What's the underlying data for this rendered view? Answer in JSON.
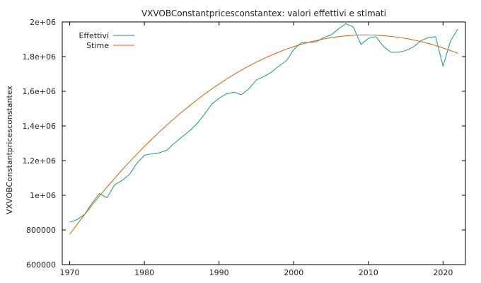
{
  "chart_data": {
    "type": "line",
    "title": "VXVOBConstantpricesconstantex: valori effettivi e stimati",
    "xlabel": "",
    "ylabel": "VXVOBConstantpricesconstantex",
    "xlim": [
      1969,
      2023
    ],
    "ylim": [
      600000,
      2000000
    ],
    "x_ticks": [
      1970,
      1980,
      1990,
      2000,
      2010,
      2020
    ],
    "y_ticks": [
      600000,
      800000,
      1000000,
      1200000,
      1400000,
      1600000,
      1800000,
      2000000
    ],
    "y_tick_labels": [
      "600000",
      "800000",
      "1e+06",
      "1,2e+06",
      "1,4e+06",
      "1,6e+06",
      "1,8e+06",
      "2e+06"
    ],
    "legend_position": "top-left",
    "grid": false,
    "series": [
      {
        "name": "Effettivi",
        "color": "#1a9978",
        "x": [
          1970,
          1971,
          1972,
          1973,
          1974,
          1975,
          1976,
          1977,
          1978,
          1979,
          1980,
          1981,
          1982,
          1983,
          1984,
          1985,
          1986,
          1987,
          1988,
          1989,
          1990,
          1991,
          1992,
          1993,
          1994,
          1995,
          1996,
          1997,
          1998,
          1999,
          2000,
          2001,
          2002,
          2003,
          2004,
          2005,
          2006,
          2007,
          2008,
          2009,
          2010,
          2011,
          2012,
          2013,
          2014,
          2015,
          2016,
          2017,
          2018,
          2019,
          2020,
          2021,
          2022
        ],
        "values": [
          845000,
          860000,
          890000,
          955000,
          1010000,
          985000,
          1060000,
          1085000,
          1120000,
          1185000,
          1230000,
          1240000,
          1245000,
          1260000,
          1300000,
          1335000,
          1370000,
          1410000,
          1465000,
          1525000,
          1560000,
          1585000,
          1595000,
          1580000,
          1615000,
          1665000,
          1685000,
          1710000,
          1745000,
          1775000,
          1840000,
          1880000,
          1882000,
          1885000,
          1910000,
          1925000,
          1960000,
          1990000,
          1970000,
          1870000,
          1905000,
          1915000,
          1860000,
          1825000,
          1825000,
          1835000,
          1855000,
          1890000,
          1910000,
          1915000,
          1745000,
          1890000,
          1960000
        ]
      },
      {
        "name": "Stime",
        "color": "#d95f0e",
        "x": [
          1970,
          1971,
          1972,
          1973,
          1974,
          1975,
          1976,
          1977,
          1978,
          1979,
          1980,
          1981,
          1982,
          1983,
          1984,
          1985,
          1986,
          1987,
          1988,
          1989,
          1990,
          1991,
          1992,
          1993,
          1994,
          1995,
          1996,
          1997,
          1998,
          1999,
          2000,
          2001,
          2002,
          2003,
          2004,
          2005,
          2006,
          2007,
          2008,
          2009,
          2010,
          2011,
          2012,
          2013,
          2014,
          2015,
          2016,
          2017,
          2018,
          2019,
          2020,
          2021,
          2022
        ],
        "values": [
          775000,
          833000,
          889000,
          944000,
          996000,
          1048000,
          1097000,
          1146000,
          1192000,
          1238000,
          1282000,
          1324000,
          1365000,
          1405000,
          1443000,
          1480000,
          1515000,
          1549000,
          1582000,
          1613000,
          1642000,
          1670000,
          1697000,
          1722000,
          1746000,
          1768000,
          1789000,
          1808000,
          1826000,
          1843000,
          1857000,
          1871000,
          1883000,
          1893000,
          1902000,
          1909000,
          1915000,
          1920000,
          1923000,
          1925000,
          1925000,
          1924000,
          1921000,
          1917000,
          1912000,
          1905000,
          1897000,
          1887000,
          1876000,
          1864000,
          1850000,
          1835000,
          1819000
        ]
      }
    ]
  }
}
